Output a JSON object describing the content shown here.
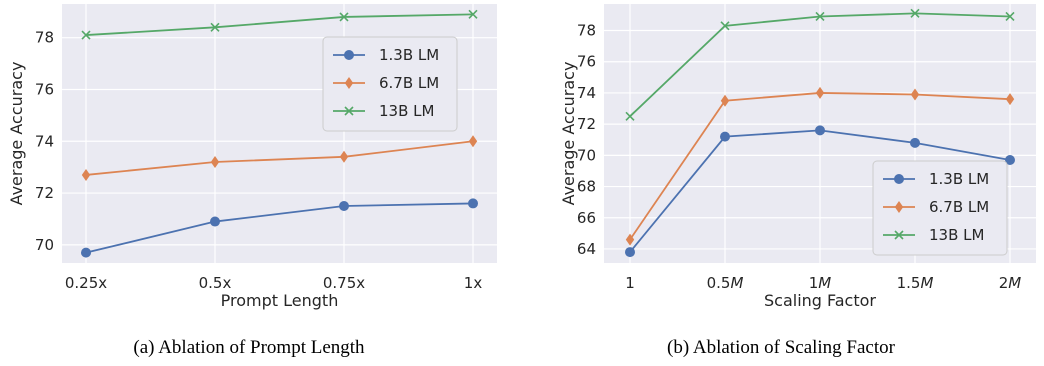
{
  "colors": {
    "plot_bg": "#eaeaf2",
    "grid": "#ffffff",
    "series_1": "#4c72b0",
    "series_2": "#dd8452",
    "series_3": "#55a868"
  },
  "captions": [
    "(a) Ablation of Prompt Length",
    "(b) Ablation of Scaling Factor"
  ],
  "chart_data": [
    {
      "type": "line",
      "title": "",
      "xlabel": "Prompt Length",
      "ylabel": "Average Accuracy",
      "categories": [
        "0.25x",
        "0.5x",
        "0.75x",
        "1x"
      ],
      "yticks": [
        "70",
        "72",
        "74",
        "76",
        "78"
      ],
      "ylim": [
        69.3,
        79.3
      ],
      "grid": true,
      "legend_position": "top-right",
      "series": [
        {
          "name": "1.3B LM",
          "marker": "circle",
          "values": [
            69.7,
            70.9,
            71.5,
            71.6
          ]
        },
        {
          "name": "6.7B LM",
          "marker": "diamond",
          "values": [
            72.7,
            73.2,
            73.4,
            74.0
          ]
        },
        {
          "name": "13B LM",
          "marker": "x",
          "values": [
            78.1,
            78.4,
            78.8,
            78.9
          ]
        }
      ]
    },
    {
      "type": "line",
      "title": "",
      "xlabel": "Scaling Factor",
      "ylabel": "Average Accuracy",
      "categories": [
        "1",
        "0.5M",
        "1M",
        "1.5M",
        "2M"
      ],
      "yticks": [
        "64",
        "66",
        "68",
        "70",
        "72",
        "74",
        "76",
        "78"
      ],
      "ylim": [
        63.1,
        79.7
      ],
      "grid": true,
      "legend_position": "lower-right",
      "series": [
        {
          "name": "1.3B LM",
          "marker": "circle",
          "values": [
            63.8,
            71.2,
            71.6,
            70.8,
            69.7
          ]
        },
        {
          "name": "6.7B LM",
          "marker": "diamond",
          "values": [
            64.6,
            73.5,
            74.0,
            73.9,
            73.6
          ]
        },
        {
          "name": "13B LM",
          "marker": "x",
          "values": [
            72.5,
            78.3,
            78.9,
            79.1,
            78.9
          ]
        }
      ]
    }
  ]
}
